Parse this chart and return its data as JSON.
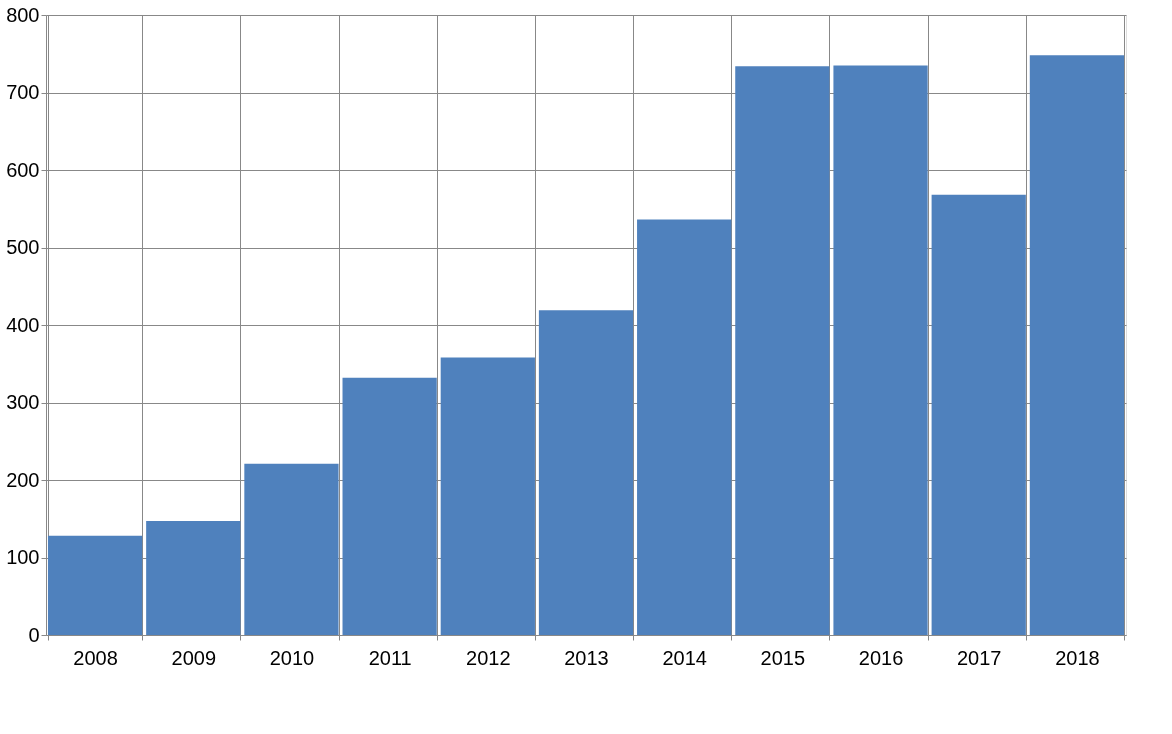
{
  "chart_data": {
    "type": "bar",
    "categories": [
      "2008",
      "2009",
      "2010",
      "2011",
      "2012",
      "2013",
      "2014",
      "2015",
      "2016",
      "2017",
      "2018"
    ],
    "values": [
      128,
      147,
      221,
      332,
      358,
      419,
      536,
      734,
      735,
      568,
      748
    ],
    "color": "#4f81bd",
    "ylim": [
      0,
      800
    ],
    "yticks": [
      0,
      100,
      200,
      300,
      400,
      500,
      600,
      700,
      800
    ],
    "grid": true
  }
}
